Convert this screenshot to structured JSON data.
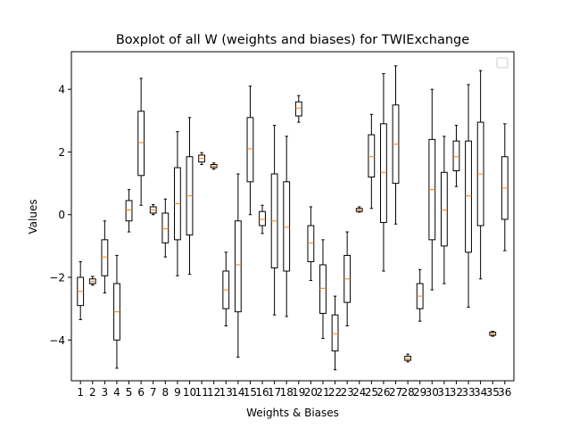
{
  "chart_data": {
    "type": "boxplot",
    "title": "Boxplot of all W (weights and biases) for TWIExchange",
    "xlabel": "Weights & Biases",
    "ylabel": "Values",
    "ylim": [
      -5.3,
      5.2
    ],
    "yticks": [
      -4,
      -2,
      0,
      2,
      4
    ],
    "legend": "top-right (empty)",
    "categories": [
      "1",
      "2",
      "3",
      "4",
      "5",
      "6",
      "7",
      "8",
      "9",
      "10",
      "11",
      "12",
      "13",
      "14",
      "15",
      "16",
      "17",
      "18",
      "19",
      "20",
      "21",
      "22",
      "23",
      "24",
      "25",
      "26",
      "27",
      "28",
      "29",
      "30",
      "31",
      "32",
      "33",
      "34",
      "35",
      "36"
    ],
    "boxes": [
      {
        "wl": -3.35,
        "q1": -2.9,
        "med": -2.45,
        "q3": -2.0,
        "wh": -1.5
      },
      {
        "wl": -2.25,
        "q1": -2.2,
        "med": -2.13,
        "q3": -2.05,
        "wh": -1.97
      },
      {
        "wl": -2.5,
        "q1": -1.95,
        "med": -1.35,
        "q3": -0.8,
        "wh": -0.2
      },
      {
        "wl": -4.9,
        "q1": -4.0,
        "med": -3.1,
        "q3": -2.2,
        "wh": -1.3
      },
      {
        "wl": -0.55,
        "q1": -0.2,
        "med": 0.15,
        "q3": 0.45,
        "wh": 0.8
      },
      {
        "wl": 0.3,
        "q1": 1.25,
        "med": 2.3,
        "q3": 3.3,
        "wh": 4.35
      },
      {
        "wl": 0.0,
        "q1": 0.05,
        "med": 0.15,
        "q3": 0.25,
        "wh": 0.32
      },
      {
        "wl": -1.35,
        "q1": -0.9,
        "med": -0.45,
        "q3": 0.05,
        "wh": 0.5
      },
      {
        "wl": -1.95,
        "q1": -0.8,
        "med": 0.35,
        "q3": 1.5,
        "wh": 2.65
      },
      {
        "wl": -1.9,
        "q1": -0.65,
        "med": 0.6,
        "q3": 1.85,
        "wh": 3.1
      },
      {
        "wl": 1.6,
        "q1": 1.68,
        "med": 1.8,
        "q3": 1.9,
        "wh": 1.98
      },
      {
        "wl": 1.45,
        "q1": 1.5,
        "med": 1.55,
        "q3": 1.6,
        "wh": 1.65
      },
      {
        "wl": -3.55,
        "q1": -3.0,
        "med": -2.4,
        "q3": -1.8,
        "wh": -1.2
      },
      {
        "wl": -4.55,
        "q1": -3.1,
        "med": -1.6,
        "q3": -0.2,
        "wh": 1.3
      },
      {
        "wl": 0.0,
        "q1": 1.05,
        "med": 2.1,
        "q3": 3.1,
        "wh": 4.1
      },
      {
        "wl": -0.6,
        "q1": -0.35,
        "med": -0.15,
        "q3": 0.1,
        "wh": 0.3
      },
      {
        "wl": -3.2,
        "q1": -1.7,
        "med": -0.2,
        "q3": 1.3,
        "wh": 2.85
      },
      {
        "wl": -3.25,
        "q1": -1.8,
        "med": -0.4,
        "q3": 1.05,
        "wh": 2.5
      },
      {
        "wl": 2.95,
        "q1": 3.15,
        "med": 3.4,
        "q3": 3.6,
        "wh": 3.8
      },
      {
        "wl": -2.1,
        "q1": -1.5,
        "med": -0.9,
        "q3": -0.35,
        "wh": 0.25
      },
      {
        "wl": -3.95,
        "q1": -3.15,
        "med": -2.35,
        "q3": -1.6,
        "wh": -0.8
      },
      {
        "wl": -4.95,
        "q1": -4.35,
        "med": -3.8,
        "q3": -3.2,
        "wh": -2.6
      },
      {
        "wl": -3.55,
        "q1": -2.8,
        "med": -2.05,
        "q3": -1.3,
        "wh": -0.55
      },
      {
        "wl": 0.08,
        "q1": 0.1,
        "med": 0.15,
        "q3": 0.2,
        "wh": 0.25
      },
      {
        "wl": 0.2,
        "q1": 1.2,
        "med": 1.85,
        "q3": 2.55,
        "wh": 3.2
      },
      {
        "wl": -1.8,
        "q1": -0.25,
        "med": 1.35,
        "q3": 2.9,
        "wh": 4.5
      },
      {
        "wl": -0.3,
        "q1": 1.0,
        "med": 2.25,
        "q3": 3.5,
        "wh": 4.75
      },
      {
        "wl": -4.7,
        "q1": -4.65,
        "med": -4.6,
        "q3": -4.52,
        "wh": -4.45
      },
      {
        "wl": -3.4,
        "q1": -3.0,
        "med": -2.6,
        "q3": -2.2,
        "wh": -1.75
      },
      {
        "wl": -2.4,
        "q1": -0.8,
        "med": 0.8,
        "q3": 2.4,
        "wh": 4.0
      },
      {
        "wl": -2.2,
        "q1": -1.0,
        "med": 0.15,
        "q3": 1.35,
        "wh": 2.5
      },
      {
        "wl": 0.9,
        "q1": 1.4,
        "med": 1.85,
        "q3": 2.35,
        "wh": 2.85
      },
      {
        "wl": -2.95,
        "q1": -1.2,
        "med": 0.6,
        "q3": 2.35,
        "wh": 4.15
      },
      {
        "wl": -2.05,
        "q1": -0.35,
        "med": 1.3,
        "q3": 2.95,
        "wh": 4.6
      },
      {
        "wl": -3.88,
        "q1": -3.85,
        "med": -3.8,
        "q3": -3.75,
        "wh": -3.72
      },
      {
        "wl": -1.15,
        "q1": -0.15,
        "med": 0.85,
        "q3": 1.85,
        "wh": 2.9
      }
    ]
  }
}
